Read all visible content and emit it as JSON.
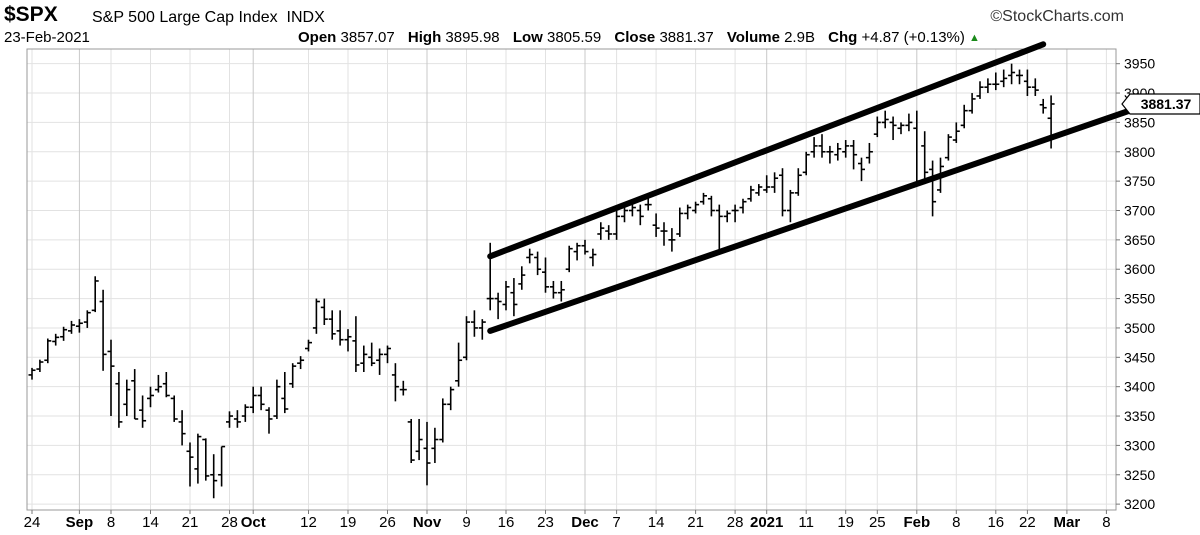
{
  "header": {
    "symbol": "$SPX",
    "name": "S&P 500 Large Cap Index",
    "exchange": "INDX",
    "brand": "©StockCharts.com",
    "date": "23-Feb-2021",
    "open_label": "Open",
    "open": "3857.07",
    "high_label": "High",
    "high": "3895.98",
    "low_label": "Low",
    "low": "3805.59",
    "close_label": "Close",
    "close": "3881.37",
    "volume_label": "Volume",
    "volume": "2.9B",
    "chg_label": "Chg",
    "chg": "+4.87 (+0.13%)"
  },
  "chart_data": {
    "type": "ohlc",
    "ylim": [
      3190,
      3975
    ],
    "grid": true,
    "last_price_label": "3881.37",
    "yticks": [
      3200,
      3250,
      3300,
      3350,
      3400,
      3450,
      3500,
      3550,
      3600,
      3650,
      3700,
      3750,
      3800,
      3850,
      3900,
      3950
    ],
    "xticks": [
      {
        "label": "24",
        "i": 0,
        "bold": false
      },
      {
        "label": "Sep",
        "i": 6,
        "bold": true
      },
      {
        "label": "8",
        "i": 10,
        "bold": false
      },
      {
        "label": "14",
        "i": 15,
        "bold": false
      },
      {
        "label": "21",
        "i": 20,
        "bold": false
      },
      {
        "label": "28",
        "i": 25,
        "bold": false
      },
      {
        "label": "Oct",
        "i": 28,
        "bold": true
      },
      {
        "label": "12",
        "i": 35,
        "bold": false
      },
      {
        "label": "19",
        "i": 40,
        "bold": false
      },
      {
        "label": "26",
        "i": 45,
        "bold": false
      },
      {
        "label": "Nov",
        "i": 50,
        "bold": true
      },
      {
        "label": "9",
        "i": 55,
        "bold": false
      },
      {
        "label": "16",
        "i": 60,
        "bold": false
      },
      {
        "label": "23",
        "i": 65,
        "bold": false
      },
      {
        "label": "Dec",
        "i": 70,
        "bold": true
      },
      {
        "label": "7",
        "i": 74,
        "bold": false
      },
      {
        "label": "14",
        "i": 79,
        "bold": false
      },
      {
        "label": "21",
        "i": 84,
        "bold": false
      },
      {
        "label": "28",
        "i": 89,
        "bold": false
      },
      {
        "label": "2021",
        "i": 93,
        "bold": true
      },
      {
        "label": "11",
        "i": 98,
        "bold": false
      },
      {
        "label": "19",
        "i": 103,
        "bold": false
      },
      {
        "label": "25",
        "i": 107,
        "bold": false
      },
      {
        "label": "Feb",
        "i": 112,
        "bold": true
      },
      {
        "label": "8",
        "i": 117,
        "bold": false
      },
      {
        "label": "16",
        "i": 122,
        "bold": false
      },
      {
        "label": "22",
        "i": 126,
        "bold": false
      },
      {
        "label": "Mar",
        "i": 131,
        "bold": true
      },
      {
        "label": "8",
        "i": 136,
        "bold": false
      }
    ],
    "bars": [
      {
        "i": 0,
        "o": 3420,
        "h": 3432,
        "l": 3412,
        "c": 3428
      },
      {
        "i": 1,
        "o": 3430,
        "h": 3446,
        "l": 3425,
        "c": 3442
      },
      {
        "i": 2,
        "o": 3445,
        "h": 3482,
        "l": 3440,
        "c": 3478
      },
      {
        "i": 3,
        "o": 3477,
        "h": 3490,
        "l": 3470,
        "c": 3484
      },
      {
        "i": 4,
        "o": 3485,
        "h": 3502,
        "l": 3478,
        "c": 3497
      },
      {
        "i": 5,
        "o": 3495,
        "h": 3512,
        "l": 3490,
        "c": 3505
      },
      {
        "i": 6,
        "o": 3503,
        "h": 3515,
        "l": 3492,
        "c": 3508
      },
      {
        "i": 7,
        "o": 3510,
        "h": 3530,
        "l": 3500,
        "c": 3526
      },
      {
        "i": 8,
        "o": 3530,
        "h": 3588,
        "l": 3527,
        "c": 3580
      },
      {
        "i": 9,
        "o": 3545,
        "h": 3565,
        "l": 3427,
        "c": 3455
      },
      {
        "i": 10,
        "o": 3460,
        "h": 3480,
        "l": 3350,
        "c": 3435
      },
      {
        "i": 11,
        "o": 3405,
        "h": 3425,
        "l": 3330,
        "c": 3340
      },
      {
        "i": 12,
        "o": 3370,
        "h": 3412,
        "l": 3350,
        "c": 3395
      },
      {
        "i": 13,
        "o": 3410,
        "h": 3430,
        "l": 3345,
        "c": 3345
      },
      {
        "i": 14,
        "o": 3360,
        "h": 3385,
        "l": 3330,
        "c": 3342
      },
      {
        "i": 15,
        "o": 3380,
        "h": 3400,
        "l": 3365,
        "c": 3385
      },
      {
        "i": 16,
        "o": 3395,
        "h": 3420,
        "l": 3390,
        "c": 3400
      },
      {
        "i": 17,
        "o": 3405,
        "h": 3425,
        "l": 3382,
        "c": 3385
      },
      {
        "i": 18,
        "o": 3380,
        "h": 3385,
        "l": 3340,
        "c": 3345
      },
      {
        "i": 19,
        "o": 3340,
        "h": 3360,
        "l": 3300,
        "c": 3320
      },
      {
        "i": 20,
        "o": 3290,
        "h": 3305,
        "l": 3230,
        "c": 3280
      },
      {
        "i": 21,
        "o": 3260,
        "h": 3320,
        "l": 3235,
        "c": 3315
      },
      {
        "i": 22,
        "o": 3310,
        "h": 3312,
        "l": 3240,
        "c": 3248
      },
      {
        "i": 23,
        "o": 3250,
        "h": 3285,
        "l": 3210,
        "c": 3240
      },
      {
        "i": 24,
        "o": 3250,
        "h": 3298,
        "l": 3230,
        "c": 3298
      },
      {
        "i": 25,
        "o": 3340,
        "h": 3358,
        "l": 3330,
        "c": 3350
      },
      {
        "i": 26,
        "o": 3345,
        "h": 3360,
        "l": 3330,
        "c": 3340
      },
      {
        "i": 27,
        "o": 3350,
        "h": 3370,
        "l": 3340,
        "c": 3365
      },
      {
        "i": 28,
        "o": 3365,
        "h": 3400,
        "l": 3355,
        "c": 3385
      },
      {
        "i": 29,
        "o": 3385,
        "h": 3400,
        "l": 3360,
        "c": 3370
      },
      {
        "i": 30,
        "o": 3360,
        "h": 3365,
        "l": 3320,
        "c": 3345
      },
      {
        "i": 31,
        "o": 3350,
        "h": 3412,
        "l": 3345,
        "c": 3400
      },
      {
        "i": 32,
        "o": 3380,
        "h": 3425,
        "l": 3355,
        "c": 3362
      },
      {
        "i": 33,
        "o": 3405,
        "h": 3440,
        "l": 3398,
        "c": 3435
      },
      {
        "i": 34,
        "o": 3440,
        "h": 3452,
        "l": 3430,
        "c": 3445
      },
      {
        "i": 35,
        "o": 3465,
        "h": 3480,
        "l": 3460,
        "c": 3475
      },
      {
        "i": 36,
        "o": 3500,
        "h": 3550,
        "l": 3490,
        "c": 3545
      },
      {
        "i": 37,
        "o": 3535,
        "h": 3550,
        "l": 3505,
        "c": 3515
      },
      {
        "i": 38,
        "o": 3515,
        "h": 3530,
        "l": 3480,
        "c": 3490
      },
      {
        "i": 39,
        "o": 3495,
        "h": 3530,
        "l": 3470,
        "c": 3480
      },
      {
        "i": 40,
        "o": 3480,
        "h": 3498,
        "l": 3460,
        "c": 3485
      },
      {
        "i": 41,
        "o": 3478,
        "h": 3520,
        "l": 3425,
        "c": 3437
      },
      {
        "i": 42,
        "o": 3440,
        "h": 3470,
        "l": 3425,
        "c": 3455
      },
      {
        "i": 43,
        "o": 3450,
        "h": 3475,
        "l": 3435,
        "c": 3440
      },
      {
        "i": 44,
        "o": 3445,
        "h": 3465,
        "l": 3420,
        "c": 3455
      },
      {
        "i": 45,
        "o": 3455,
        "h": 3470,
        "l": 3440,
        "c": 3465
      },
      {
        "i": 46,
        "o": 3420,
        "h": 3440,
        "l": 3375,
        "c": 3400
      },
      {
        "i": 47,
        "o": 3395,
        "h": 3410,
        "l": 3385,
        "c": 3395
      },
      {
        "i": 48,
        "o": 3340,
        "h": 3345,
        "l": 3270,
        "c": 3275
      },
      {
        "i": 49,
        "o": 3290,
        "h": 3345,
        "l": 3275,
        "c": 3310
      },
      {
        "i": 50,
        "o": 3295,
        "h": 3340,
        "l": 3232,
        "c": 3270
      },
      {
        "i": 51,
        "o": 3295,
        "h": 3330,
        "l": 3270,
        "c": 3310
      },
      {
        "i": 52,
        "o": 3310,
        "h": 3380,
        "l": 3305,
        "c": 3370
      },
      {
        "i": 53,
        "o": 3370,
        "h": 3400,
        "l": 3360,
        "c": 3395
      },
      {
        "i": 54,
        "o": 3410,
        "h": 3475,
        "l": 3400,
        "c": 3445
      },
      {
        "i": 55,
        "o": 3450,
        "h": 3520,
        "l": 3445,
        "c": 3510
      },
      {
        "i": 56,
        "o": 3510,
        "h": 3530,
        "l": 3485,
        "c": 3500
      },
      {
        "i": 57,
        "o": 3500,
        "h": 3515,
        "l": 3480,
        "c": 3510
      },
      {
        "i": 58,
        "o": 3550,
        "h": 3645,
        "l": 3530,
        "c": 3550
      },
      {
        "i": 59,
        "o": 3550,
        "h": 3560,
        "l": 3515,
        "c": 3545
      },
      {
        "i": 60,
        "o": 3540,
        "h": 3580,
        "l": 3530,
        "c": 3570
      },
      {
        "i": 61,
        "o": 3560,
        "h": 3585,
        "l": 3520,
        "c": 3540
      },
      {
        "i": 62,
        "o": 3575,
        "h": 3605,
        "l": 3565,
        "c": 3590
      },
      {
        "i": 63,
        "o": 3620,
        "h": 3635,
        "l": 3610,
        "c": 3625
      },
      {
        "i": 64,
        "o": 3620,
        "h": 3630,
        "l": 3590,
        "c": 3600
      },
      {
        "i": 65,
        "o": 3595,
        "h": 3620,
        "l": 3560,
        "c": 3570
      },
      {
        "i": 66,
        "o": 3570,
        "h": 3580,
        "l": 3550,
        "c": 3560
      },
      {
        "i": 67,
        "o": 3560,
        "h": 3580,
        "l": 3545,
        "c": 3565
      },
      {
        "i": 68,
        "o": 3600,
        "h": 3640,
        "l": 3595,
        "c": 3635
      },
      {
        "i": 69,
        "o": 3630,
        "h": 3645,
        "l": 3615,
        "c": 3640
      },
      {
        "i": 70,
        "o": 3640,
        "h": 3650,
        "l": 3625,
        "c": 3630
      },
      {
        "i": 71,
        "o": 3620,
        "h": 3635,
        "l": 3605,
        "c": 3625
      },
      {
        "i": 72,
        "o": 3660,
        "h": 3680,
        "l": 3650,
        "c": 3670
      },
      {
        "i": 73,
        "o": 3665,
        "h": 3675,
        "l": 3650,
        "c": 3660
      },
      {
        "i": 74,
        "o": 3660,
        "h": 3700,
        "l": 3650,
        "c": 3690
      },
      {
        "i": 75,
        "o": 3690,
        "h": 3710,
        "l": 3680,
        "c": 3700
      },
      {
        "i": 76,
        "o": 3700,
        "h": 3715,
        "l": 3690,
        "c": 3705
      },
      {
        "i": 77,
        "o": 3700,
        "h": 3710,
        "l": 3675,
        "c": 3690
      },
      {
        "i": 78,
        "o": 3710,
        "h": 3725,
        "l": 3700,
        "c": 3710
      },
      {
        "i": 79,
        "o": 3675,
        "h": 3695,
        "l": 3655,
        "c": 3670
      },
      {
        "i": 80,
        "o": 3665,
        "h": 3680,
        "l": 3640,
        "c": 3665
      },
      {
        "i": 81,
        "o": 3650,
        "h": 3670,
        "l": 3630,
        "c": 3650
      },
      {
        "i": 82,
        "o": 3660,
        "h": 3705,
        "l": 3655,
        "c": 3695
      },
      {
        "i": 83,
        "o": 3695,
        "h": 3710,
        "l": 3685,
        "c": 3705
      },
      {
        "i": 84,
        "o": 3700,
        "h": 3715,
        "l": 3695,
        "c": 3710
      },
      {
        "i": 85,
        "o": 3715,
        "h": 3730,
        "l": 3710,
        "c": 3725
      },
      {
        "i": 86,
        "o": 3720,
        "h": 3725,
        "l": 3690,
        "c": 3700
      },
      {
        "i": 87,
        "o": 3700,
        "h": 3710,
        "l": 3625,
        "c": 3690
      },
      {
        "i": 88,
        "o": 3690,
        "h": 3700,
        "l": 3680,
        "c": 3695
      },
      {
        "i": 89,
        "o": 3700,
        "h": 3710,
        "l": 3680,
        "c": 3700
      },
      {
        "i": 90,
        "o": 3705,
        "h": 3720,
        "l": 3695,
        "c": 3715
      },
      {
        "i": 91,
        "o": 3720,
        "h": 3742,
        "l": 3715,
        "c": 3735
      },
      {
        "i": 92,
        "o": 3730,
        "h": 3745,
        "l": 3725,
        "c": 3740
      },
      {
        "i": 93,
        "o": 3735,
        "h": 3760,
        "l": 3730,
        "c": 3740
      },
      {
        "i": 94,
        "o": 3740,
        "h": 3765,
        "l": 3730,
        "c": 3755
      },
      {
        "i": 95,
        "o": 3760,
        "h": 3772,
        "l": 3690,
        "c": 3700
      },
      {
        "i": 96,
        "o": 3700,
        "h": 3735,
        "l": 3680,
        "c": 3730
      },
      {
        "i": 97,
        "o": 3730,
        "h": 3772,
        "l": 3725,
        "c": 3760
      },
      {
        "i": 98,
        "o": 3765,
        "h": 3800,
        "l": 3760,
        "c": 3795
      },
      {
        "i": 99,
        "o": 3800,
        "h": 3825,
        "l": 3790,
        "c": 3810
      },
      {
        "i": 100,
        "o": 3810,
        "h": 3830,
        "l": 3790,
        "c": 3800
      },
      {
        "i": 101,
        "o": 3800,
        "h": 3810,
        "l": 3780,
        "c": 3800
      },
      {
        "i": 102,
        "o": 3795,
        "h": 3815,
        "l": 3785,
        "c": 3805
      },
      {
        "i": 103,
        "o": 3800,
        "h": 3820,
        "l": 3790,
        "c": 3810
      },
      {
        "i": 104,
        "o": 3810,
        "h": 3820,
        "l": 3770,
        "c": 3795
      },
      {
        "i": 105,
        "o": 3780,
        "h": 3790,
        "l": 3750,
        "c": 3770
      },
      {
        "i": 106,
        "o": 3790,
        "h": 3815,
        "l": 3780,
        "c": 3800
      },
      {
        "i": 107,
        "o": 3830,
        "h": 3860,
        "l": 3825,
        "c": 3850
      },
      {
        "i": 108,
        "o": 3850,
        "h": 3870,
        "l": 3840,
        "c": 3855
      },
      {
        "i": 109,
        "o": 3850,
        "h": 3860,
        "l": 3820,
        "c": 3845
      },
      {
        "i": 110,
        "o": 3840,
        "h": 3850,
        "l": 3830,
        "c": 3845
      },
      {
        "i": 111,
        "o": 3845,
        "h": 3865,
        "l": 3835,
        "c": 3850
      },
      {
        "i": 112,
        "o": 3840,
        "h": 3870,
        "l": 3745,
        "c": 3750
      },
      {
        "i": 113,
        "o": 3810,
        "h": 3835,
        "l": 3745,
        "c": 3765
      },
      {
        "i": 114,
        "o": 3770,
        "h": 3785,
        "l": 3690,
        "c": 3715
      },
      {
        "i": 115,
        "o": 3735,
        "h": 3790,
        "l": 3730,
        "c": 3775
      },
      {
        "i": 116,
        "o": 3790,
        "h": 3830,
        "l": 3785,
        "c": 3825
      },
      {
        "i": 117,
        "o": 3820,
        "h": 3850,
        "l": 3815,
        "c": 3835
      },
      {
        "i": 118,
        "o": 3845,
        "h": 3880,
        "l": 3840,
        "c": 3870
      },
      {
        "i": 119,
        "o": 3870,
        "h": 3900,
        "l": 3865,
        "c": 3890
      },
      {
        "i": 120,
        "o": 3895,
        "h": 3920,
        "l": 3890,
        "c": 3910
      },
      {
        "i": 121,
        "o": 3910,
        "h": 3925,
        "l": 3900,
        "c": 3915
      },
      {
        "i": 122,
        "o": 3915,
        "h": 3935,
        "l": 3905,
        "c": 3915
      },
      {
        "i": 123,
        "o": 3920,
        "h": 3940,
        "l": 3910,
        "c": 3925
      },
      {
        "i": 124,
        "o": 3930,
        "h": 3950,
        "l": 3915,
        "c": 3935
      },
      {
        "i": 125,
        "o": 3930,
        "h": 3940,
        "l": 3915,
        "c": 3930
      },
      {
        "i": 126,
        "o": 3920,
        "h": 3940,
        "l": 3895,
        "c": 3910
      },
      {
        "i": 127,
        "o": 3910,
        "h": 3925,
        "l": 3895,
        "c": 3905
      },
      {
        "i": 128,
        "o": 3880,
        "h": 3890,
        "l": 3865,
        "c": 3875
      },
      {
        "i": 129,
        "o": 3857.07,
        "h": 3895.98,
        "l": 3805.59,
        "c": 3881.37
      }
    ],
    "channel": [
      {
        "name": "upper",
        "from": {
          "i": 58,
          "y": 3622
        },
        "to": {
          "i": 128,
          "y": 3983
        }
      },
      {
        "name": "lower",
        "from": {
          "i": 58,
          "y": 3495
        },
        "to": {
          "i": 140,
          "y": 3875
        }
      }
    ]
  }
}
